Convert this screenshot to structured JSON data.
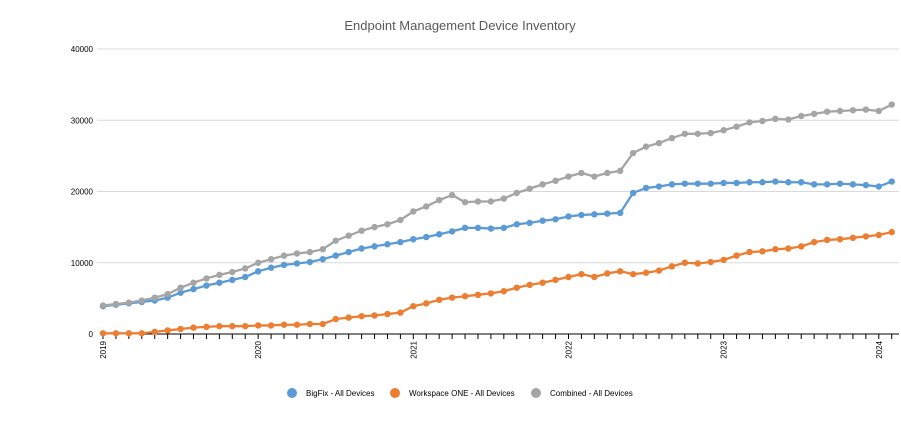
{
  "chart_data": {
    "type": "line",
    "title": "Endpoint Management Device Inventory",
    "xlabel": "",
    "ylabel": "",
    "ylim": [
      0,
      40000
    ],
    "yticks": [
      "0",
      "10000",
      "20000",
      "30000",
      "40000"
    ],
    "x_start": "2019-01",
    "x_frequency": "monthly",
    "xtick_labels": [
      "2019",
      "2020",
      "2021",
      "2022",
      "2023",
      "2024"
    ],
    "grid": "horizontal",
    "legend_position": "bottom",
    "series": [
      {
        "name": "BigFix - All Devices",
        "color": "#5b9bd5",
        "values": [
          3900,
          4100,
          4300,
          4500,
          4700,
          5100,
          5800,
          6300,
          6800,
          7200,
          7600,
          8000,
          8800,
          9300,
          9700,
          9900,
          10100,
          10500,
          11000,
          11500,
          12000,
          12300,
          12600,
          12900,
          13300,
          13600,
          14000,
          14400,
          14900,
          14900,
          14800,
          14900,
          15400,
          15600,
          15900,
          16100,
          16500,
          16700,
          16800,
          16900,
          17000,
          19800,
          20500,
          20700,
          21000,
          21100,
          21100,
          21100,
          21200,
          21200,
          21300,
          21300,
          21400,
          21300,
          21300,
          21000,
          21000,
          21100,
          21000,
          20900,
          20700,
          21400
        ]
      },
      {
        "name": "Workspace ONE - All Devices",
        "color": "#ed7d31",
        "values": [
          100,
          100,
          100,
          100,
          300,
          500,
          700,
          900,
          1000,
          1100,
          1100,
          1100,
          1200,
          1200,
          1300,
          1300,
          1400,
          1400,
          2100,
          2300,
          2500,
          2600,
          2800,
          3000,
          3900,
          4300,
          4800,
          5100,
          5300,
          5500,
          5700,
          6000,
          6500,
          6900,
          7200,
          7600,
          8000,
          8400,
          8000,
          8500,
          8800,
          8400,
          8600,
          8900,
          9500,
          10000,
          9900,
          10100,
          10400,
          11000,
          11500,
          11600,
          11900,
          12000,
          12300,
          12900,
          13200,
          13300,
          13500,
          13700,
          13900,
          14300
        ]
      },
      {
        "name": "Combined - All Devices",
        "color": "#a5a5a5",
        "values": [
          4000,
          4200,
          4400,
          4700,
          5100,
          5600,
          6500,
          7200,
          7800,
          8300,
          8700,
          9200,
          10000,
          10500,
          11000,
          11300,
          11500,
          11900,
          13100,
          13800,
          14500,
          15000,
          15400,
          16000,
          17200,
          17900,
          18800,
          19500,
          18500,
          18600,
          18600,
          19000,
          19800,
          20400,
          21000,
          21500,
          22100,
          22600,
          22100,
          22600,
          22900,
          25400,
          26300,
          26800,
          27500,
          28100,
          28100,
          28200,
          28600,
          29100,
          29700,
          29900,
          30200,
          30100,
          30600,
          30900,
          31200,
          31300,
          31400,
          31500,
          31300,
          32200
        ]
      }
    ]
  }
}
